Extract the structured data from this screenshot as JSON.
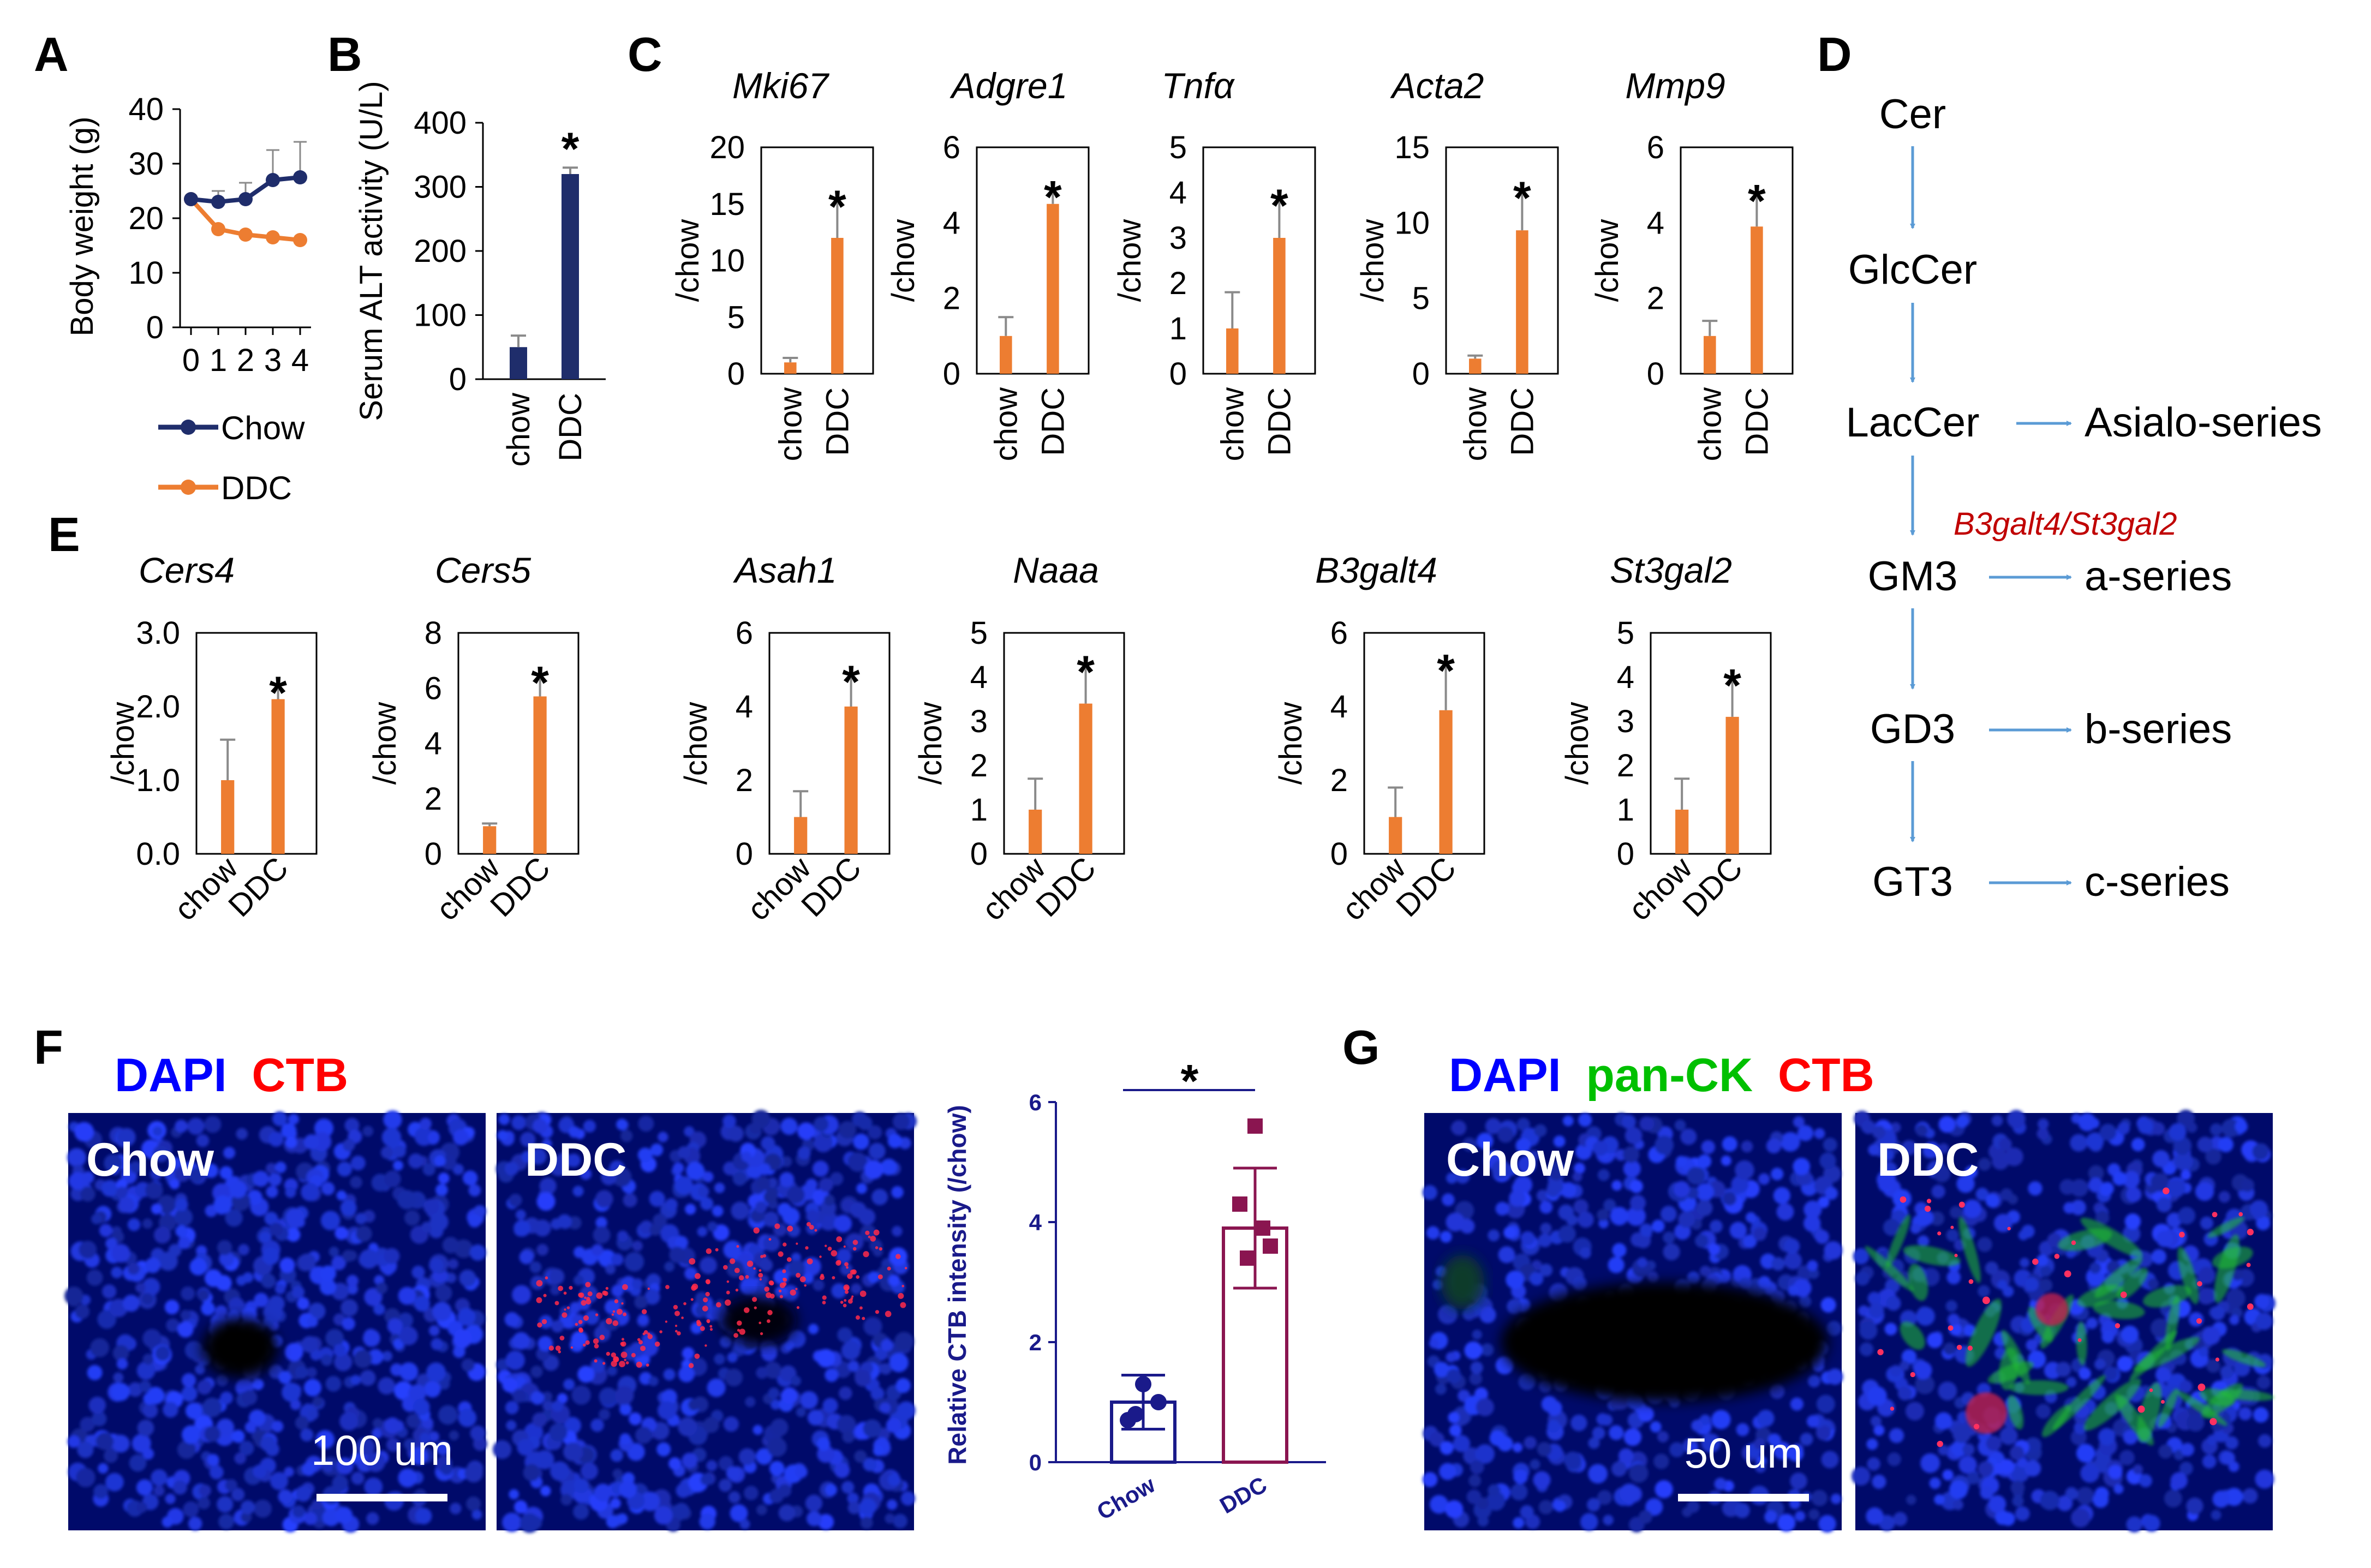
{
  "colors": {
    "chow_line": "#1f2d6b",
    "ddc_line": "#ed7d31",
    "bar_orange": "#ed7d31",
    "bar_navy": "#1f2d6b",
    "arrow": "#5b9bd5",
    "enzyme": "#c00000",
    "dapi": "#0000ff",
    "ctb": "#ff0000",
    "panck": "#00c000",
    "f_chow": "#1a1a8a",
    "f_ddc": "#8a1550"
  },
  "panels": {
    "A": "A",
    "B": "B",
    "C": "C",
    "D": "D",
    "E": "E",
    "F": "F",
    "G": "G"
  },
  "panel_a": {
    "chart_data": {
      "type": "line",
      "ylabel": "Body weight (g)",
      "xlabel": "",
      "x": [
        0,
        1,
        2,
        3,
        4
      ],
      "x_ticks": [
        "0",
        "1",
        "2",
        "3",
        "4"
      ],
      "ylim": [
        0,
        40
      ],
      "y_ticks": [
        "0",
        "10",
        "20",
        "30",
        "40"
      ],
      "series": [
        {
          "name": "Chow",
          "values": [
            23.5,
            23,
            23.5,
            27,
            27.5
          ],
          "err": [
            0,
            2,
            3,
            5.5,
            6.5
          ]
        },
        {
          "name": "DDC",
          "values": [
            23.5,
            18,
            17,
            16.5,
            16
          ],
          "err": [
            0,
            0,
            0,
            0,
            0
          ]
        }
      ]
    }
  },
  "panel_b": {
    "chart_data": {
      "type": "bar",
      "ylabel": "Serum ALT activity (U/L)",
      "categories": [
        "chow",
        "DDC"
      ],
      "values": [
        50,
        320
      ],
      "err": [
        18,
        10
      ],
      "ylim": [
        0,
        400
      ],
      "y_ticks": [
        "0",
        "100",
        "200",
        "300",
        "400"
      ],
      "sig": [
        "",
        "*"
      ]
    }
  },
  "panel_c": {
    "chart_data": [
      {
        "type": "bar",
        "title": "Mki67",
        "ylabel": "/chow",
        "categories": [
          "chow",
          "DDC"
        ],
        "values": [
          1,
          12
        ],
        "err": [
          0.4,
          3.5
        ],
        "ylim": [
          0,
          20
        ],
        "y_ticks": [
          "0",
          "5",
          "10",
          "15",
          "20"
        ],
        "sig": "*"
      },
      {
        "type": "bar",
        "title": "Adgre1",
        "ylabel": "/chow",
        "categories": [
          "chow",
          "DDC"
        ],
        "values": [
          1,
          4.5
        ],
        "err": [
          0.5,
          0.4
        ],
        "ylim": [
          0,
          6
        ],
        "y_ticks": [
          "0",
          "2",
          "4",
          "6"
        ],
        "sig": "*"
      },
      {
        "type": "bar",
        "title": "Tnfα",
        "ylabel": "/chow",
        "categories": [
          "chow",
          "DDC"
        ],
        "values": [
          1,
          3
        ],
        "err": [
          0.8,
          0.9
        ],
        "ylim": [
          0,
          5
        ],
        "y_ticks": [
          "0",
          "1",
          "2",
          "3",
          "4",
          "5"
        ],
        "sig": "*"
      },
      {
        "type": "bar",
        "title": "Acta2",
        "ylabel": "/chow",
        "categories": [
          "chow",
          "DDC"
        ],
        "values": [
          1,
          9.5
        ],
        "err": [
          0.2,
          2.7
        ],
        "ylim": [
          0,
          15
        ],
        "y_ticks": [
          "0",
          "5",
          "10",
          "15"
        ],
        "sig": "*"
      },
      {
        "type": "bar",
        "title": "Mmp9",
        "ylabel": "/chow",
        "categories": [
          "chow",
          "DDC"
        ],
        "values": [
          1,
          3.9
        ],
        "err": [
          0.4,
          0.9
        ],
        "ylim": [
          0,
          6
        ],
        "y_ticks": [
          "0",
          "2",
          "4",
          "6"
        ],
        "sig": "*"
      }
    ]
  },
  "panel_d": {
    "nodes": [
      "Cer",
      "GlcCer",
      "LacCer",
      "GM3",
      "GD3",
      "GT3"
    ],
    "branches": [
      "Asialo-series",
      "a-series",
      "b-series",
      "c-series"
    ],
    "enzyme": "B3galt4/St3gal2"
  },
  "panel_e": {
    "chart_data": [
      {
        "type": "bar",
        "title": "Cers4",
        "ylabel": "/chow",
        "categories": [
          "chow",
          "DDC"
        ],
        "values": [
          1,
          2.1
        ],
        "err": [
          0.55,
          0.2
        ],
        "ylim": [
          0,
          3
        ],
        "y_ticks": [
          "0.0",
          "1.0",
          "2.0",
          "3.0"
        ],
        "sig": "*"
      },
      {
        "type": "bar",
        "title": "Cers5",
        "ylabel": "/chow",
        "categories": [
          "chow",
          "DDC"
        ],
        "values": [
          1,
          5.7
        ],
        "err": [
          0.1,
          0.8
        ],
        "ylim": [
          0,
          8
        ],
        "y_ticks": [
          "0",
          "2",
          "4",
          "6",
          "8"
        ],
        "sig": "*"
      },
      {
        "type": "bar",
        "title": "Asah1",
        "ylabel": "/chow",
        "categories": [
          "chow",
          "DDC"
        ],
        "values": [
          1,
          4
        ],
        "err": [
          0.7,
          0.9
        ],
        "ylim": [
          0,
          6
        ],
        "y_ticks": [
          "0",
          "2",
          "4",
          "6"
        ],
        "sig": "*"
      },
      {
        "type": "bar",
        "title": "Naaa",
        "ylabel": "/chow",
        "categories": [
          "chow",
          "DDC"
        ],
        "values": [
          1,
          3.4
        ],
        "err": [
          0.7,
          0.9
        ],
        "ylim": [
          0,
          5
        ],
        "y_ticks": [
          "0",
          "1",
          "2",
          "3",
          "4",
          "5"
        ],
        "sig": "*"
      },
      {
        "type": "bar",
        "title": "B3galt4",
        "ylabel": "/chow",
        "categories": [
          "chow",
          "DDC"
        ],
        "values": [
          1,
          3.9
        ],
        "err": [
          0.8,
          1.3
        ],
        "ylim": [
          0,
          6
        ],
        "y_ticks": [
          "0",
          "2",
          "4",
          "6"
        ],
        "sig": "*"
      },
      {
        "type": "bar",
        "title": "St3gal2",
        "ylabel": "/chow",
        "categories": [
          "chow",
          "DDC"
        ],
        "values": [
          1,
          3.1
        ],
        "err": [
          0.7,
          0.9
        ],
        "ylim": [
          0,
          5
        ],
        "y_ticks": [
          "0",
          "1",
          "2",
          "3",
          "4",
          "5"
        ],
        "sig": "*"
      }
    ]
  },
  "panel_f": {
    "title_dapi": "DAPI",
    "title_ctb": "CTB",
    "img_left": "Chow",
    "img_right": "DDC",
    "scale": "100 um",
    "chart_data": {
      "type": "bar",
      "ylabel": "Relative CTB intensity (/chow)",
      "categories": [
        "Chow",
        "DDC"
      ],
      "values": [
        1.0,
        3.9
      ],
      "err": [
        0.45,
        1.0
      ],
      "ylim": [
        0,
        6
      ],
      "y_ticks": [
        "0",
        "2",
        "4",
        "6"
      ],
      "points": [
        [
          1.3,
          0.7,
          1.0,
          0.8
        ],
        [
          5.6,
          4.3,
          3.6,
          3.4,
          3.9
        ]
      ],
      "sig": "*"
    }
  },
  "panel_g": {
    "title_dapi": "DAPI",
    "title_panck": "pan-CK",
    "title_ctb": "CTB",
    "img_left": "Chow",
    "img_right": "DDC",
    "scale": "50 um"
  }
}
